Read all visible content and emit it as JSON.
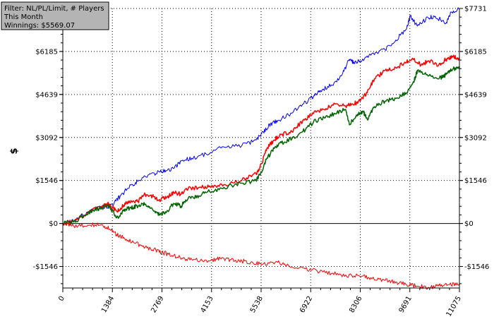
{
  "info": {
    "filter": "Filter: NL/PL/Limit, # Players",
    "period": "This Month",
    "winnings": "Winnings: $5569.07"
  },
  "chart_data": {
    "type": "line",
    "ylabel": "$",
    "xlabel": "",
    "xlim": [
      0,
      11075
    ],
    "ylim": [
      -2320,
      7731
    ],
    "x_ticks": [
      0,
      1384,
      2769,
      4153,
      5538,
      6922,
      8306,
      9691,
      11075
    ],
    "x_tick_labels": [
      "0",
      "1384",
      "2769",
      "4153",
      "5538",
      "6922",
      "8306",
      "9691",
      "11075"
    ],
    "y_ticks": [
      -1546,
      0,
      1546,
      3092,
      4639,
      6185,
      7731
    ],
    "y_tick_labels": [
      "-$1546",
      "$0",
      "$1546",
      "$3092",
      "$4639",
      "$6185",
      "$7731"
    ],
    "grid": "dotted",
    "series": [
      {
        "color": "#0000ff",
        "stroke": 1,
        "points": [
          [
            0,
            0
          ],
          [
            300,
            80
          ],
          [
            700,
            420
          ],
          [
            1100,
            600
          ],
          [
            1400,
            660
          ],
          [
            1600,
            980
          ],
          [
            1900,
            1380
          ],
          [
            2100,
            1520
          ],
          [
            2400,
            1750
          ],
          [
            2700,
            1850
          ],
          [
            2900,
            1900
          ],
          [
            3100,
            1980
          ],
          [
            3300,
            2250
          ],
          [
            3600,
            2350
          ],
          [
            4000,
            2500
          ],
          [
            4500,
            2750
          ],
          [
            5000,
            2800
          ],
          [
            5400,
            3000
          ],
          [
            5600,
            3300
          ],
          [
            5800,
            3580
          ],
          [
            6000,
            3700
          ],
          [
            6300,
            3900
          ],
          [
            6700,
            4300
          ],
          [
            7000,
            4550
          ],
          [
            7200,
            4780
          ],
          [
            7500,
            4980
          ],
          [
            7800,
            5350
          ],
          [
            8000,
            5900
          ],
          [
            8150,
            5750
          ],
          [
            8300,
            5850
          ],
          [
            8600,
            6050
          ],
          [
            9000,
            6250
          ],
          [
            9300,
            6600
          ],
          [
            9600,
            7000
          ],
          [
            9700,
            7450
          ],
          [
            9900,
            7100
          ],
          [
            10200,
            7400
          ],
          [
            10400,
            7450
          ],
          [
            10700,
            7200
          ],
          [
            10850,
            7600
          ],
          [
            11075,
            7731
          ]
        ]
      },
      {
        "color": "#ff0000",
        "stroke": 1.5,
        "points": [
          [
            0,
            0
          ],
          [
            300,
            60
          ],
          [
            600,
            300
          ],
          [
            900,
            550
          ],
          [
            1100,
            600
          ],
          [
            1300,
            700
          ],
          [
            1500,
            450
          ],
          [
            1700,
            650
          ],
          [
            1900,
            820
          ],
          [
            2100,
            800
          ],
          [
            2300,
            1050
          ],
          [
            2500,
            980
          ],
          [
            2700,
            860
          ],
          [
            2900,
            950
          ],
          [
            3100,
            1120
          ],
          [
            3300,
            1050
          ],
          [
            3500,
            1250
          ],
          [
            3800,
            1300
          ],
          [
            4100,
            1350
          ],
          [
            4500,
            1400
          ],
          [
            5000,
            1550
          ],
          [
            5400,
            1800
          ],
          [
            5500,
            2000
          ],
          [
            5700,
            2700
          ],
          [
            5900,
            3000
          ],
          [
            6100,
            3200
          ],
          [
            6400,
            3300
          ],
          [
            6700,
            3700
          ],
          [
            7000,
            3950
          ],
          [
            7300,
            4100
          ],
          [
            7600,
            4300
          ],
          [
            7900,
            4200
          ],
          [
            8100,
            4300
          ],
          [
            8300,
            4400
          ],
          [
            8500,
            4700
          ],
          [
            8700,
            5200
          ],
          [
            9000,
            5500
          ],
          [
            9300,
            5600
          ],
          [
            9600,
            5800
          ],
          [
            9800,
            5900
          ],
          [
            10000,
            5700
          ],
          [
            10200,
            5850
          ],
          [
            10500,
            5700
          ],
          [
            10700,
            5900
          ],
          [
            10900,
            6000
          ],
          [
            11075,
            5900
          ]
        ]
      },
      {
        "color": "#006400",
        "stroke": 1.5,
        "points": [
          [
            0,
            0
          ],
          [
            300,
            50
          ],
          [
            600,
            280
          ],
          [
            900,
            520
          ],
          [
            1100,
            560
          ],
          [
            1300,
            620
          ],
          [
            1500,
            200
          ],
          [
            1700,
            450
          ],
          [
            1900,
            580
          ],
          [
            2100,
            620
          ],
          [
            2300,
            700
          ],
          [
            2500,
            520
          ],
          [
            2700,
            300
          ],
          [
            2900,
            420
          ],
          [
            3100,
            720
          ],
          [
            3300,
            620
          ],
          [
            3500,
            900
          ],
          [
            3800,
            1000
          ],
          [
            4100,
            1150
          ],
          [
            4500,
            1300
          ],
          [
            5000,
            1450
          ],
          [
            5400,
            1550
          ],
          [
            5500,
            1750
          ],
          [
            5700,
            2350
          ],
          [
            5900,
            2700
          ],
          [
            6100,
            2900
          ],
          [
            6400,
            3050
          ],
          [
            6700,
            3300
          ],
          [
            7000,
            3650
          ],
          [
            7300,
            3800
          ],
          [
            7600,
            3950
          ],
          [
            7900,
            4100
          ],
          [
            8000,
            3550
          ],
          [
            8200,
            3900
          ],
          [
            8400,
            4000
          ],
          [
            8500,
            3750
          ],
          [
            8700,
            4200
          ],
          [
            9000,
            4400
          ],
          [
            9300,
            4500
          ],
          [
            9600,
            4700
          ],
          [
            9800,
            5100
          ],
          [
            9900,
            5500
          ],
          [
            10200,
            5300
          ],
          [
            10500,
            5200
          ],
          [
            10700,
            5350
          ],
          [
            10900,
            5550
          ],
          [
            11075,
            5569
          ]
        ]
      },
      {
        "color": "#ff0000",
        "stroke": 1,
        "points": [
          [
            0,
            0
          ],
          [
            300,
            -80
          ],
          [
            700,
            -60
          ],
          [
            1100,
            -40
          ],
          [
            1300,
            -200
          ],
          [
            1500,
            -400
          ],
          [
            1700,
            -500
          ],
          [
            2000,
            -700
          ],
          [
            2300,
            -850
          ],
          [
            2600,
            -950
          ],
          [
            2800,
            -1050
          ],
          [
            3100,
            -1150
          ],
          [
            3400,
            -1250
          ],
          [
            3700,
            -1300
          ],
          [
            4100,
            -1350
          ],
          [
            4400,
            -1250
          ],
          [
            4700,
            -1300
          ],
          [
            5000,
            -1350
          ],
          [
            5300,
            -1400
          ],
          [
            5600,
            -1450
          ],
          [
            6000,
            -1400
          ],
          [
            6300,
            -1500
          ],
          [
            6700,
            -1600
          ],
          [
            7100,
            -1700
          ],
          [
            7500,
            -1800
          ],
          [
            7900,
            -1850
          ],
          [
            8300,
            -1900
          ],
          [
            8600,
            -1950
          ],
          [
            9000,
            -2050
          ],
          [
            9300,
            -2100
          ],
          [
            9600,
            -2200
          ],
          [
            9900,
            -2250
          ],
          [
            10200,
            -2300
          ],
          [
            10500,
            -2250
          ],
          [
            10800,
            -2200
          ],
          [
            11075,
            -2180
          ]
        ]
      }
    ]
  }
}
